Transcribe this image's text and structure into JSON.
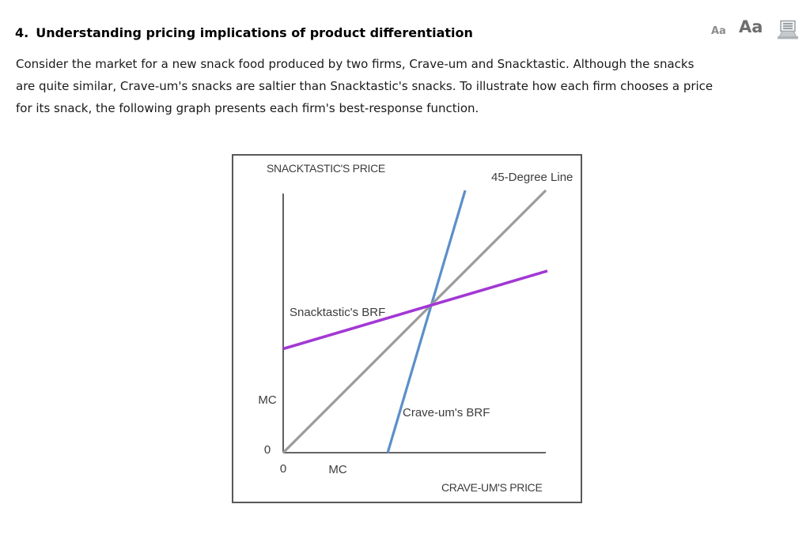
{
  "header": {
    "title_number": "4.",
    "title_text": "Understanding pricing implications of product differentiation",
    "text_size_small_label": "Aa",
    "text_size_large_label": "Aa",
    "print_icon": "printer-icon"
  },
  "intro_lines": [
    "Consider the market for a new snack food produced by two firms, Crave-um and Snacktastic. Although the snacks",
    "are quite similar, Crave-um's snacks are saltier than Snacktastic's snacks. To illustrate how each firm chooses a price",
    "for its snack, the following graph presents each firm's best-response function."
  ],
  "chart_data": {
    "type": "line",
    "title": "",
    "ylabel": "SNACKTASTIC'S PRICE",
    "xlabel": "CRAVE-UM'S PRICE",
    "xlim": [
      0,
      10
    ],
    "ylim": [
      0,
      9.9
    ],
    "grid": false,
    "legend_position": "inline-annotations",
    "x_ticks": [
      {
        "label": "0",
        "value": 0
      },
      {
        "label": "MC",
        "value": 2.08
      }
    ],
    "y_ticks": [
      {
        "label": "0",
        "value": 0
      },
      {
        "label": "MC",
        "value": 2.01
      }
    ],
    "series": [
      {
        "name": "45-Degree Line",
        "color": "#9b9b9b",
        "points": [
          [
            0,
            0
          ],
          [
            10,
            10
          ]
        ]
      },
      {
        "name": "Snacktastic's BRF",
        "color": "#a238d4",
        "points": [
          [
            0,
            3.96
          ],
          [
            10.06,
            6.93
          ]
        ]
      },
      {
        "name": "Crave-um's BRF",
        "color": "#5b8fc9",
        "points": [
          [
            3.98,
            0
          ],
          [
            6.93,
            10
          ]
        ]
      }
    ],
    "intersection_on_45_degree_line": [
      5.64,
      5.64
    ]
  }
}
